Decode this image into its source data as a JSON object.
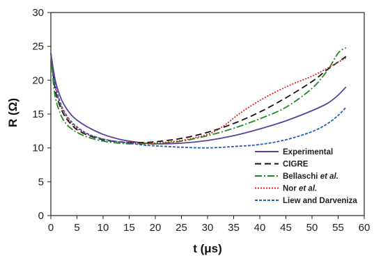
{
  "chart_data": {
    "type": "line",
    "xlabel": "t (μs)",
    "ylabel": "R (Ω)",
    "xlim": [
      0,
      60
    ],
    "ylim": [
      0,
      30
    ],
    "xticks": [
      0,
      5,
      10,
      15,
      20,
      25,
      30,
      35,
      40,
      45,
      50,
      55,
      60
    ],
    "yticks": [
      0,
      5,
      10,
      15,
      20,
      25,
      30
    ],
    "grid": false,
    "legend_position": "bottom-right",
    "series": [
      {
        "name": "Experimental",
        "legend": {
          "prefix": "Experimental",
          "italic": "",
          "suffix": ""
        },
        "color": "#5b3f9a",
        "dash": "",
        "x": [
          0,
          0.5,
          1,
          2,
          3,
          4,
          5,
          7,
          10,
          13,
          15,
          18,
          20,
          25,
          30,
          35,
          40,
          45,
          50,
          53,
          55,
          56.5
        ],
        "y": [
          24,
          21.5,
          19.5,
          17.2,
          15.8,
          14.8,
          14.1,
          13.1,
          12.0,
          11.3,
          11.0,
          10.7,
          10.6,
          10.7,
          11.1,
          11.8,
          12.8,
          14.0,
          15.5,
          16.6,
          17.8,
          19.0
        ]
      },
      {
        "name": "CIGRE",
        "legend": {
          "prefix": "CIGRE",
          "italic": "",
          "suffix": ""
        },
        "color": "#111111",
        "dash": "9,5",
        "x": [
          0,
          0.5,
          1,
          2,
          3,
          4,
          5,
          7,
          10,
          13,
          15,
          18,
          20,
          25,
          30,
          35,
          40,
          45,
          50,
          53,
          56.5
        ],
        "y": [
          24,
          20.5,
          18.0,
          15.7,
          14.3,
          13.4,
          12.7,
          11.9,
          11.2,
          10.9,
          10.8,
          10.8,
          10.9,
          11.4,
          12.3,
          13.6,
          15.3,
          17.4,
          19.8,
          21.6,
          23.5
        ]
      },
      {
        "name": "Bellaschi et al.",
        "legend": {
          "prefix": "Bellaschi ",
          "italic": "et al.",
          "suffix": ""
        },
        "color": "#1a8a1a",
        "dash": "10,3,2,3",
        "x": [
          0,
          0.5,
          1,
          2,
          3,
          4,
          5,
          7,
          10,
          13,
          15,
          18,
          20,
          25,
          30,
          35,
          40,
          45,
          50,
          53,
          55,
          56.5
        ],
        "y": [
          24,
          19.5,
          17.0,
          14.7,
          13.5,
          12.8,
          12.3,
          11.6,
          11.0,
          10.7,
          10.6,
          10.6,
          10.6,
          11.0,
          11.8,
          12.9,
          14.3,
          16.0,
          18.8,
          21.5,
          24.0,
          24.8
        ]
      },
      {
        "name": "Nor et al.",
        "legend": {
          "prefix": "Nor ",
          "italic": "et al.",
          "suffix": ""
        },
        "color": "#e02020",
        "dash": "2,2",
        "x": [
          0,
          0.5,
          1,
          2,
          3,
          4,
          5,
          7,
          10,
          13,
          15,
          18,
          20,
          25,
          30,
          33,
          36,
          40,
          45,
          50,
          53,
          56.5
        ],
        "y": [
          24,
          21.0,
          18.5,
          16.0,
          14.6,
          13.6,
          12.9,
          12.0,
          11.3,
          10.9,
          10.8,
          10.7,
          10.7,
          11.1,
          12.0,
          13.2,
          15.0,
          17.0,
          19.0,
          20.6,
          21.8,
          23.3
        ]
      },
      {
        "name": "Liew and Darveniza",
        "legend": {
          "prefix": "Liew and Darveniza",
          "italic": "",
          "suffix": ""
        },
        "color": "#1f5fb5",
        "dash": "4,2",
        "x": [
          0,
          0.5,
          1,
          2,
          3,
          4,
          5,
          7,
          10,
          13,
          15,
          18,
          20,
          25,
          30,
          35,
          40,
          45,
          50,
          53,
          55,
          56.5
        ],
        "y": [
          24,
          21.0,
          18.8,
          16.3,
          14.8,
          13.8,
          13.1,
          12.1,
          11.3,
          10.9,
          10.7,
          10.4,
          10.3,
          10.1,
          10.0,
          10.2,
          10.5,
          11.2,
          12.4,
          13.6,
          14.8,
          16.0
        ]
      }
    ]
  }
}
